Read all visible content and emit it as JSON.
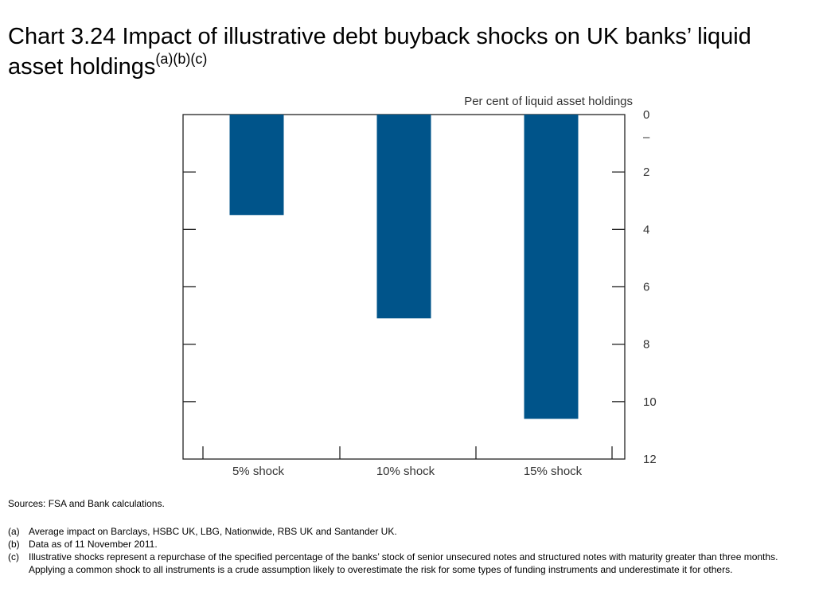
{
  "title": {
    "text": "Chart 3.24  Impact of illustrative debt buyback shocks on UK banks’ liquid asset holdings",
    "superscript": "(a)(b)(c)"
  },
  "chart_data": {
    "type": "bar",
    "categories": [
      "5% shock",
      "10% shock",
      "15% shock"
    ],
    "values": [
      3.5,
      7.1,
      10.6
    ],
    "ylabel": "Per cent of liquid asset holdings",
    "ylim": [
      0,
      12
    ],
    "y_inverted": true,
    "y_axis_side": "right",
    "y_ticks": [
      0,
      2,
      4,
      6,
      8,
      10,
      12
    ],
    "y_tick_labels": [
      "0",
      "2",
      "4",
      "6",
      "8",
      "10",
      "12"
    ],
    "zero_marker_label": "–",
    "bar_color": "#00548a",
    "grid": false,
    "legend": "none"
  },
  "sources": "Sources:  FSA and Bank calculations.",
  "notes": [
    {
      "mark": "(a)",
      "text": "Average impact on Barclays, HSBC UK, LBG, Nationwide, RBS UK and Santander UK."
    },
    {
      "mark": "(b)",
      "text": "Data as of 11 November 2011."
    },
    {
      "mark": "(c)",
      "text": "Illustrative shocks represent a repurchase of the specified percentage of the banks’ stock of senior unsecured notes and structured notes with maturity greater than three months. Applying a common shock to all instruments is a crude assumption likely to overestimate the risk for some types of funding instruments and underestimate it for others."
    }
  ]
}
